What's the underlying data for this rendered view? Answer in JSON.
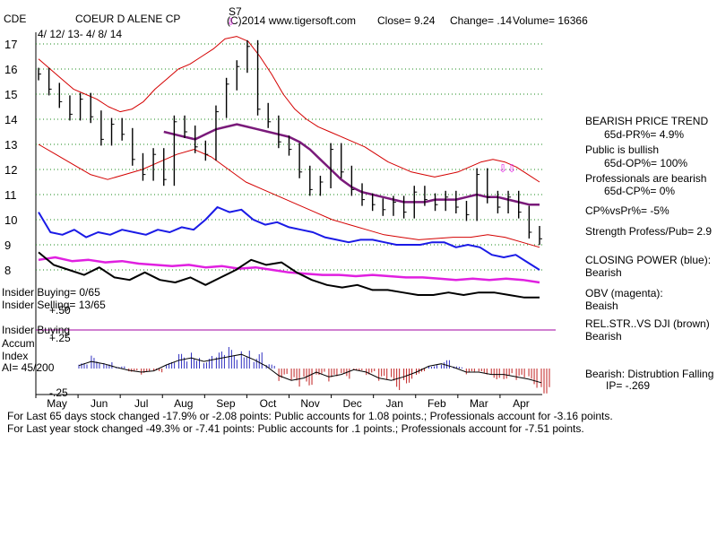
{
  "header": {
    "ticker": "CDE",
    "company": "COEUR D ALENE CP",
    "signal": "S7",
    "copyright": "(C)2014 www.tigersoft.com",
    "close": "Close=  9.24",
    "change": "Change= .14",
    "volume": "Volume= 16366",
    "date_range": "4/ 12/ 13- 4/ 8/ 14"
  },
  "chart_data": {
    "type": "line",
    "title": "COEUR D ALENE CP",
    "price_axis": {
      "ticks": [
        17,
        16,
        15,
        14,
        13,
        12,
        11,
        10,
        9,
        8
      ],
      "ylim": [
        7.5,
        17.5
      ]
    },
    "months": [
      "May",
      "Jun",
      "Jul",
      "Aug",
      "Sep",
      "Oct",
      "Nov",
      "Dec",
      "Jan",
      "Feb",
      "Mar",
      "Apr"
    ],
    "price_close": [
      15.8,
      15.2,
      14.7,
      14.2,
      14.8,
      14.1,
      13.2,
      13.8,
      13.4,
      12.4,
      11.8,
      12.6,
      11.6,
      13.9,
      13.5,
      12.9,
      12.6,
      14.3,
      15.4,
      16.1,
      16.9,
      14.4,
      13.9,
      13.1,
      12.8,
      11.9,
      11.2,
      11.5,
      12.8,
      11.9,
      11.2,
      10.8,
      10.6,
      10.4,
      10.7,
      10.3,
      11.1,
      10.8,
      10.6,
      10.9,
      10.5,
      10.2,
      11.8,
      10.9,
      10.5,
      10.9,
      10.3,
      9.5,
      9.24
    ],
    "ma65": [
      null,
      null,
      null,
      null,
      null,
      null,
      null,
      null,
      null,
      null,
      null,
      null,
      13.5,
      13.4,
      13.3,
      13.2,
      13.4,
      13.6,
      13.7,
      13.8,
      13.7,
      13.6,
      13.5,
      13.4,
      13.3,
      13.1,
      12.8,
      12.4,
      12.0,
      11.6,
      11.3,
      11.1,
      11.0,
      10.9,
      10.8,
      10.7,
      10.7,
      10.7,
      10.8,
      10.8,
      10.8,
      10.9,
      11.0,
      10.9,
      10.9,
      10.8,
      10.7,
      10.6,
      10.6
    ],
    "band_upper": [
      16.4,
      16.0,
      15.6,
      15.2,
      15.0,
      14.8,
      14.5,
      14.3,
      14.4,
      14.7,
      15.2,
      15.6,
      16.0,
      16.2,
      16.5,
      16.8,
      17.2,
      17.3,
      17.1,
      16.5,
      15.8,
      15.0,
      14.4,
      14.0,
      13.7,
      13.5,
      13.3,
      13.1,
      12.9,
      12.6,
      12.3,
      12.1,
      11.9,
      11.8,
      11.7,
      11.8,
      11.9,
      12.1,
      12.3,
      12.4,
      12.3,
      12.1,
      11.8,
      11.5
    ],
    "band_lower": [
      13.0,
      12.6,
      12.2,
      11.8,
      11.6,
      11.8,
      12.0,
      12.3,
      12.6,
      12.8,
      12.5,
      12.0,
      11.5,
      11.2,
      10.9,
      10.6,
      10.3,
      10.0,
      9.8,
      9.6,
      9.4,
      9.3,
      9.2,
      9.25,
      9.3,
      9.3,
      9.4,
      9.3,
      9.1,
      8.9
    ],
    "closing_power": [
      10.3,
      9.5,
      9.4,
      9.6,
      9.3,
      9.5,
      9.4,
      9.6,
      9.5,
      9.4,
      9.6,
      9.5,
      9.7,
      9.6,
      10.0,
      10.5,
      10.3,
      10.4,
      10.0,
      9.8,
      9.9,
      9.7,
      9.6,
      9.5,
      9.3,
      9.2,
      9.1,
      9.2,
      9.2,
      9.1,
      9.0,
      9.0,
      9.0,
      9.1,
      9.1,
      8.9,
      9.0,
      8.9,
      8.6,
      8.5,
      8.6,
      8.3,
      8.0
    ],
    "obv": [
      8.4,
      8.5,
      8.35,
      8.4,
      8.3,
      8.35,
      8.25,
      8.2,
      8.15,
      8.2,
      8.1,
      8.15,
      8.05,
      8.1,
      8.0,
      7.9,
      7.85,
      7.8,
      7.8,
      7.75,
      7.8,
      7.75,
      7.7,
      7.7,
      7.65,
      7.6,
      7.65,
      7.6,
      7.65,
      7.6,
      7.5
    ],
    "rel_strength": [
      8.7,
      8.2,
      8.0,
      7.8,
      8.1,
      7.7,
      7.6,
      7.9,
      7.6,
      7.5,
      7.7,
      7.4,
      7.7,
      8.0,
      8.4,
      8.2,
      8.3,
      7.9,
      7.6,
      7.4,
      7.3,
      7.4,
      7.2,
      7.2,
      7.1,
      7.0,
      7.0,
      7.1,
      7.0,
      7.1,
      7.1,
      7.0,
      6.9,
      6.9
    ],
    "accum_axis": {
      "ticks": [
        "+.50",
        "+.25",
        "-.25"
      ]
    },
    "accum_index": [
      0.05,
      0.12,
      0.08,
      0.02,
      -0.03,
      -0.06,
      -0.04,
      0.06,
      0.14,
      0.18,
      0.12,
      0.16,
      0.2,
      0.24,
      0.15,
      0.04,
      -0.12,
      -0.2,
      -0.16,
      -0.06,
      -0.14,
      -0.1,
      -0.02,
      -0.06,
      -0.16,
      -0.2,
      -0.14,
      -0.06,
      0.04,
      0.08,
      0.02,
      -0.06,
      -0.06,
      -0.1,
      -0.1,
      -0.14,
      -0.18,
      -0.24
    ]
  },
  "left_labels": {
    "insider_buying": "Insider Buying= 0/65",
    "insider_selling": "Insider Selling= 13/65",
    "insider_buying2": "Insider Buying",
    "accum": "Accum",
    "index": "Index",
    "ai": "AI= 45/200"
  },
  "right_panel": {
    "trend_title": "BEARISH PRICE TREND",
    "pr": "65d-PR%= 4.9%",
    "public": "Public is bullish",
    "op": "65d-OP%= 100%",
    "professionals": "Professionals are bearish",
    "cp": "65d-CP%= 0%",
    "cpvspr": "CP%vsPr%= -5%",
    "strength": "Strength Profess/Pub= 2.9",
    "closing_power": "CLOSING POWER (blue):",
    "cp_status": "Bearish",
    "obv": "OBV (magenta):",
    "obv_status": "Beaish",
    "rel": "REL.STR..VS DJI (brown)",
    "rel_status": "Bearish",
    "dist": "Bearish: Distrubtion Falling",
    "ip": "IP= -.269"
  },
  "footer": {
    "line1": "For Last 65 days stock changed -17.9% or -2.08 points:  Public accounts for  1.08 points.;  Professionals account for -3.16 points.",
    "line2": "For Last year stock changed -49.3% or -7.41 points:  Public accounts for  .1 points.;  Professionals account for -7.51 points."
  },
  "colors": {
    "price": "#000000",
    "bands": "#d40000",
    "ma": "#7a1a7a",
    "closing_power": "#1a1ae6",
    "obv": "#e020e0",
    "rel_strength": "#000000",
    "accum_pos": "#3030c0",
    "accum_neg": "#c02020",
    "grid": "#1a8a1a"
  }
}
